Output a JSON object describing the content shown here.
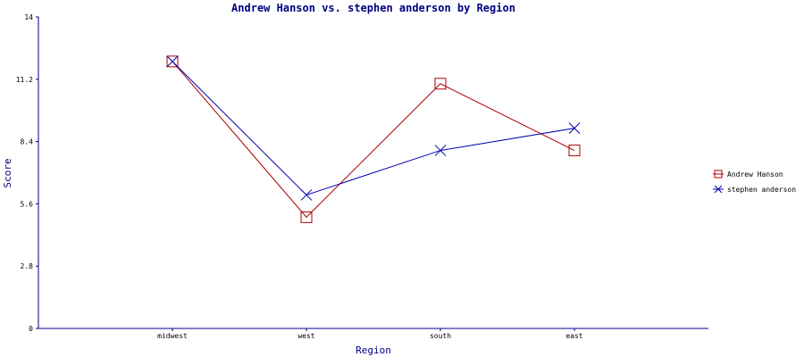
{
  "chart_data": {
    "type": "line",
    "title": "Andrew Hanson vs. stephen anderson by Region",
    "xlabel": "Region",
    "ylabel": "Score",
    "categories": [
      "midwest",
      "west",
      "south",
      "east"
    ],
    "ylim": [
      0,
      14
    ],
    "yticks": [
      "0",
      "2.8",
      "5.6",
      "8.4",
      "11.2",
      "14"
    ],
    "grid": false,
    "legend_position": "right",
    "series": [
      {
        "name": "Andrew Hanson",
        "color": "#aa0000",
        "marker": "square",
        "values": [
          12,
          5,
          11,
          8
        ]
      },
      {
        "name": "stephen anderson",
        "color": "#0000aa",
        "marker": "x",
        "values": [
          12,
          6,
          8,
          9
        ]
      }
    ],
    "axis_color": "#000080"
  }
}
